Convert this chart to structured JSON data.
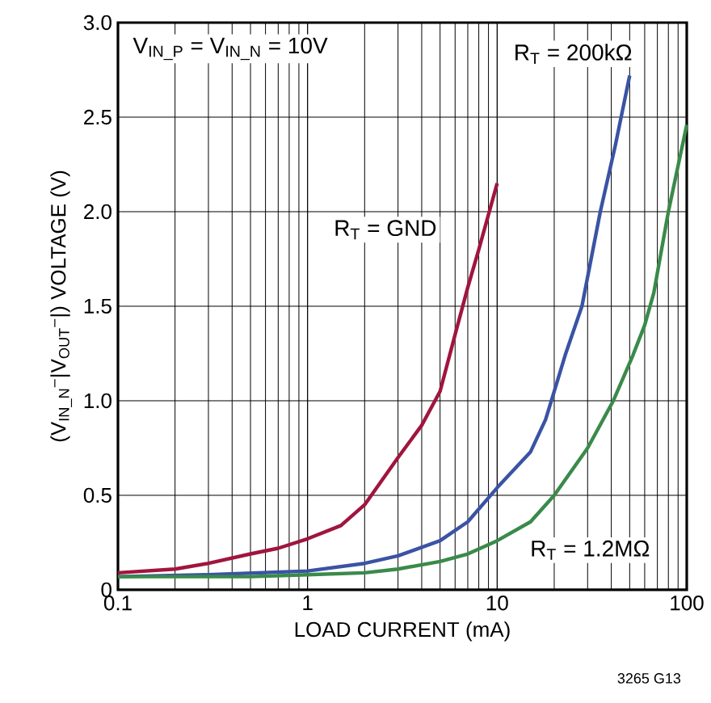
{
  "chart_data": {
    "type": "line",
    "xlabel": "LOAD CURRENT (mA)",
    "ylabel": "(V$_{IN_N}$$^{–}$|V$_{OUT}$$^{–}$|) VOLTAGE (V)",
    "log": "x",
    "grid": true,
    "line_style": "solid",
    "marker": "none",
    "xlim": [
      0.1,
      100
    ],
    "ylim": [
      0,
      3.0
    ],
    "xticks": [
      0.1,
      1,
      10,
      100
    ],
    "yticks": [
      0,
      0.5,
      {
        "value": 1,
        "label": "1.0"
      },
      1.5,
      {
        "value": 2,
        "label": "2.0"
      },
      2.5,
      {
        "value": 3,
        "label": "3.0"
      }
    ],
    "series": [
      {
        "name": "R$_{T}$ = GND",
        "color": "#a0153e",
        "x": [
          0.1,
          0.2,
          0.3,
          0.5,
          0.7,
          1,
          1.5,
          2,
          3,
          4,
          5,
          6,
          7,
          8,
          10
        ],
        "values": [
          0.09,
          0.11,
          0.14,
          0.19,
          0.22,
          0.27,
          0.34,
          0.45,
          0.7,
          0.87,
          1.05,
          1.35,
          1.6,
          1.8,
          2.15
        ]
      },
      {
        "name": "R$_{T}$ = 200kΩ",
        "color": "#3a53a4",
        "x": [
          0.1,
          0.3,
          1,
          2,
          3,
          5,
          7,
          10,
          15,
          18,
          20,
          23,
          28,
          35,
          42,
          50
        ],
        "values": [
          0.07,
          0.08,
          0.1,
          0.14,
          0.18,
          0.26,
          0.36,
          0.54,
          0.73,
          0.9,
          1.05,
          1.25,
          1.5,
          2.0,
          2.35,
          2.72
        ]
      },
      {
        "name": "R$_{T}$ = 1.2MΩ",
        "color": "#3a8a4a",
        "x": [
          0.1,
          0.5,
          1,
          2,
          3,
          5,
          7,
          10,
          15,
          20,
          30,
          41,
          52,
          60,
          67,
          80,
          100
        ],
        "values": [
          0.07,
          0.07,
          0.08,
          0.09,
          0.11,
          0.15,
          0.19,
          0.26,
          0.36,
          0.5,
          0.75,
          1.0,
          1.24,
          1.4,
          1.57,
          2.0,
          2.46
        ]
      }
    ],
    "annotations": [
      "V$_{IN_P}$ = V$_{IN_N}$ = 10V",
      "3265 G13"
    ]
  }
}
